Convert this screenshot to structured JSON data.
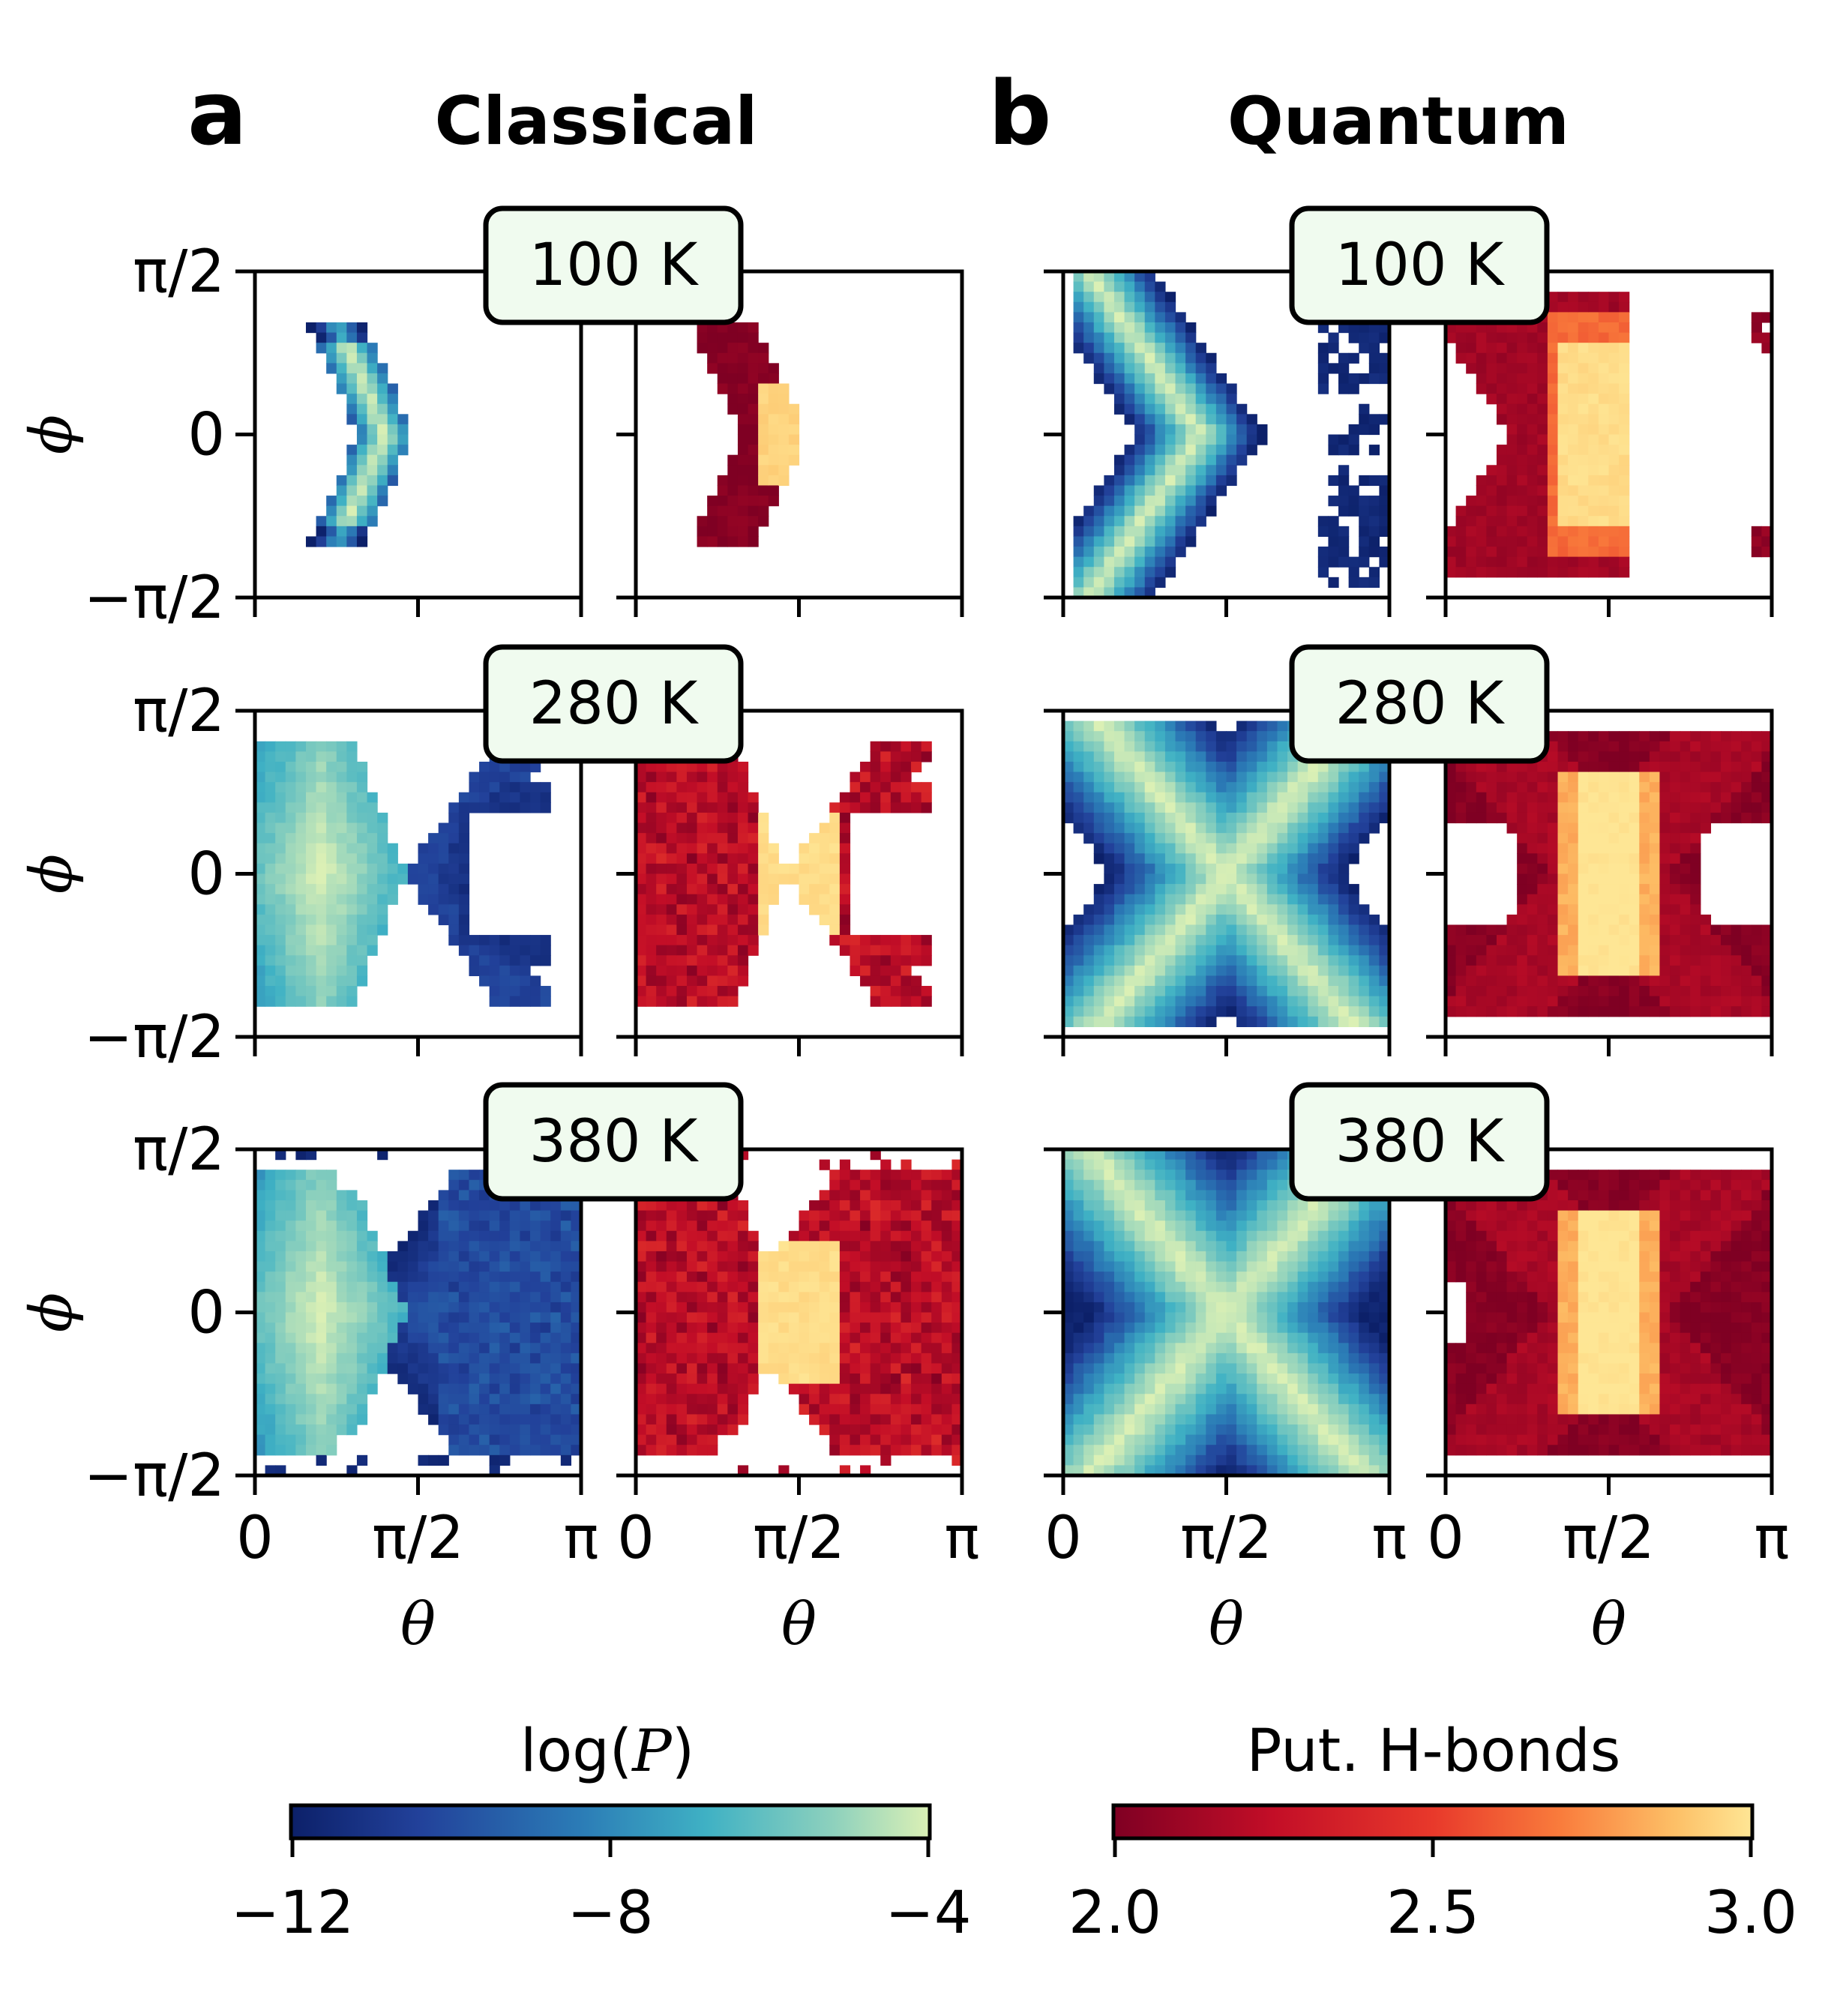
{
  "panels": [
    {
      "letter": "a",
      "title": "Classical"
    },
    {
      "letter": "b",
      "title": "Quantum"
    }
  ],
  "temperatures": [
    "100 K",
    "280 K",
    "380 K"
  ],
  "y_ticks": [
    "π/2",
    "0",
    "−π/2"
  ],
  "x_ticks": [
    "0",
    "π/2",
    "π"
  ],
  "x_label": "θ",
  "y_label": "ϕ",
  "colors": {
    "box_fill": "#f0fbef",
    "log_cmap": [
      "#0c2069",
      "#22419a",
      "#2b7bb6",
      "#3fb1c4",
      "#8ed1bd",
      "#dbf0b5"
    ],
    "hb_cmap": [
      "#7f0023",
      "#c30e27",
      "#e8392b",
      "#f97c3c",
      "#fdc067",
      "#fee695"
    ]
  },
  "chart_data": {
    "type": "heatmap",
    "description_rows": "temperature",
    "description_cols": "theta-phi 2D histograms",
    "theta_range": [
      0,
      3.1416
    ],
    "phi_range": [
      -1.5708,
      1.5708
    ],
    "grid": [
      32,
      32
    ],
    "colorbars": [
      {
        "label": "log(",
        "label_italic": "P",
        "label_close": ")",
        "min": -12,
        "max": -4,
        "ticks": [
          "−12",
          "−8",
          "−4"
        ],
        "tick_values": [
          -12,
          -8,
          -4
        ]
      },
      {
        "label": "Put. H-bonds",
        "min": 2.0,
        "max": 3.0,
        "ticks": [
          "2.0",
          "2.5",
          "3.0"
        ],
        "tick_values": [
          2.0,
          2.5,
          3.0
        ]
      }
    ],
    "series": [
      {
        "name": "Classical log(P)",
        "panel": "a",
        "quantity": "log(P)",
        "shape": {
          "100 K": "chevron",
          "280 K": "chevron+tail",
          "380 K": "chevron+tail"
        }
      },
      {
        "name": "Classical H-bonds",
        "panel": "a",
        "quantity": "Put. H-bonds",
        "shape": {
          "100 K": "chevron",
          "280 K": "chevron+tail",
          "380 K": "chevron+tail"
        }
      },
      {
        "name": "Quantum log(P)",
        "panel": "b",
        "quantity": "log(P)",
        "shape": {
          "100 K": "chevron+spots",
          "280 K": "X-shape",
          "380 K": "X-shape"
        }
      },
      {
        "name": "Quantum H-bonds",
        "panel": "b",
        "quantity": "Put. H-bonds",
        "shape": {
          "100 K": "chevron+spots",
          "280 K": "X-shape",
          "380 K": "X-shape"
        }
      }
    ]
  }
}
